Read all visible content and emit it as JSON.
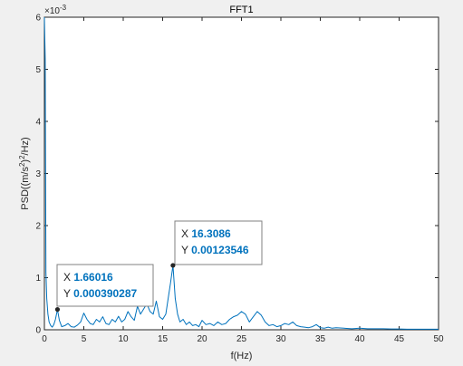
{
  "chart_data": {
    "type": "line",
    "title": "FFT1",
    "xlabel": "f(Hz)",
    "ylabel": "PSD((m/s^2)^2/Hz)",
    "ylabel_parts": {
      "prefix": "PSD(",
      "unit": "(m/s",
      "sup1": "2",
      "mid": ")",
      "sup2": "2",
      "suffix": "/Hz)"
    },
    "xlim": [
      0,
      50
    ],
    "ylim": [
      0,
      6
    ],
    "x_ticks": [
      0,
      5,
      10,
      15,
      20,
      25,
      30,
      35,
      40,
      45,
      50
    ],
    "y_ticks": [
      0,
      1,
      2,
      3,
      4,
      5,
      6
    ],
    "y_exponent": {
      "base": "×10",
      "power": "-3"
    },
    "line_color": "#0072bd",
    "series": [
      {
        "x": [
          0,
          0.1,
          0.2,
          0.3,
          0.45,
          0.6,
          0.8,
          1.0,
          1.2,
          1.4,
          1.66,
          1.9,
          2.2,
          2.6,
          3.0,
          3.4,
          3.8,
          4.2,
          4.6,
          5.0,
          5.4,
          5.8,
          6.2,
          6.6,
          7.0,
          7.4,
          7.8,
          8.2,
          8.6,
          9.0,
          9.4,
          9.8,
          10.2,
          10.6,
          11.0,
          11.4,
          11.8,
          12.2,
          12.6,
          13.0,
          13.4,
          13.8,
          14.2,
          14.6,
          15.0,
          15.4,
          15.7,
          16.0,
          16.31,
          16.6,
          16.9,
          17.2,
          17.6,
          18.0,
          18.4,
          18.8,
          19.2,
          19.6,
          20.0,
          20.5,
          21.0,
          21.5,
          22.0,
          22.5,
          23.0,
          23.5,
          24.0,
          24.5,
          25.0,
          25.5,
          26.0,
          26.5,
          27.0,
          27.5,
          28.0,
          28.5,
          29.0,
          29.5,
          30.0,
          30.5,
          31.0,
          31.5,
          32.0,
          32.5,
          33.0,
          33.5,
          34.0,
          34.5,
          35.0,
          35.5,
          36.0,
          36.5,
          37.0,
          38.0,
          39.0,
          40.0,
          41.0,
          42.0,
          43.0,
          44.0,
          45.0,
          46.0,
          47.0,
          48.0,
          49.0,
          50.0
        ],
        "y": [
          6.0,
          5.2,
          1.1,
          0.6,
          0.3,
          0.15,
          0.08,
          0.05,
          0.1,
          0.2,
          0.39,
          0.18,
          0.06,
          0.08,
          0.12,
          0.06,
          0.05,
          0.09,
          0.15,
          0.32,
          0.2,
          0.12,
          0.1,
          0.2,
          0.15,
          0.25,
          0.12,
          0.1,
          0.2,
          0.15,
          0.26,
          0.15,
          0.2,
          0.35,
          0.25,
          0.18,
          0.45,
          0.3,
          0.4,
          0.5,
          0.35,
          0.3,
          0.55,
          0.25,
          0.2,
          0.3,
          0.6,
          0.9,
          1.235,
          0.6,
          0.3,
          0.15,
          0.2,
          0.1,
          0.15,
          0.08,
          0.1,
          0.06,
          0.18,
          0.1,
          0.12,
          0.08,
          0.15,
          0.1,
          0.12,
          0.2,
          0.25,
          0.28,
          0.35,
          0.3,
          0.15,
          0.25,
          0.35,
          0.28,
          0.15,
          0.08,
          0.1,
          0.06,
          0.08,
          0.12,
          0.1,
          0.15,
          0.08,
          0.06,
          0.05,
          0.04,
          0.06,
          0.1,
          0.04,
          0.03,
          0.05,
          0.03,
          0.04,
          0.03,
          0.02,
          0.03,
          0.02,
          0.02,
          0.02,
          0.015,
          0.015,
          0.01,
          0.01,
          0.01,
          0.01,
          0.01
        ]
      }
    ],
    "datatips": [
      {
        "x": 1.66016,
        "y": 0.000390287,
        "x_label": "X",
        "y_label": "Y",
        "x_text": "1.66016",
        "y_text": "0.000390287"
      },
      {
        "x": 16.3086,
        "y": 0.00123546,
        "x_label": "X",
        "y_label": "Y",
        "x_text": "16.3086",
        "y_text": "0.00123546"
      }
    ],
    "grid": false,
    "legend": "none"
  }
}
